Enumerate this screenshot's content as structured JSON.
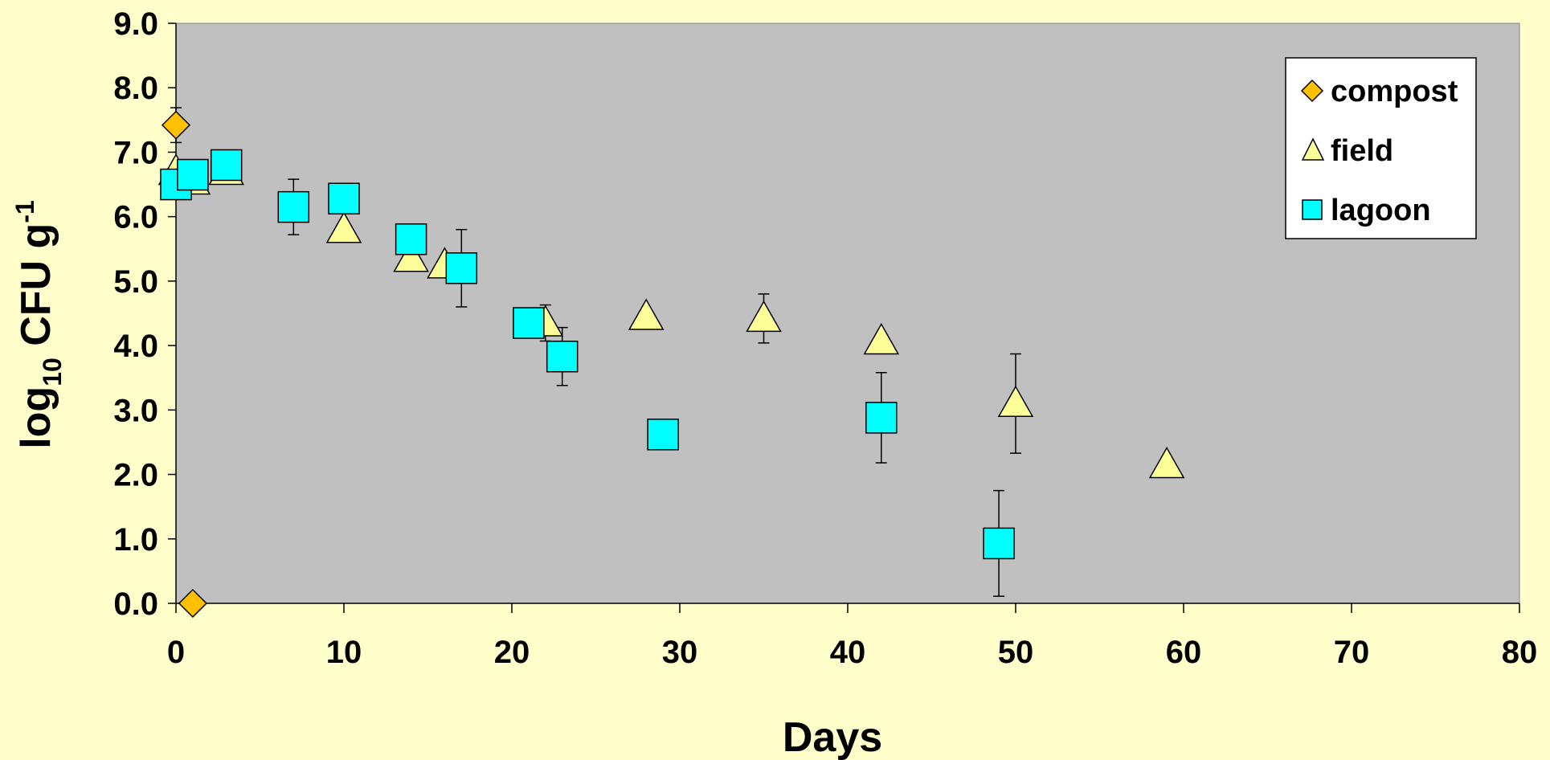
{
  "chart_data": {
    "type": "scatter",
    "title": "",
    "xlabel": "Days",
    "ylabel": {
      "base": "log",
      "sub": "10",
      "main": " CFU g",
      "sup": "-1"
    },
    "xlim": [
      0,
      80
    ],
    "ylim": [
      0,
      9
    ],
    "x_ticks": [
      0,
      10,
      20,
      30,
      40,
      50,
      60,
      70,
      80
    ],
    "y_ticks": [
      0,
      1,
      2,
      3,
      4,
      5,
      6,
      7,
      8,
      9
    ],
    "x_tick_labels": [
      "0",
      "10",
      "20",
      "30",
      "40",
      "50",
      "60",
      "70",
      "80"
    ],
    "y_tick_labels": [
      "0.0",
      "1.0",
      "2.0",
      "3.0",
      "4.0",
      "5.0",
      "6.0",
      "7.0",
      "8.0",
      "9.0"
    ],
    "grid": false,
    "plot_background": "#c0c0c0",
    "page_background": "#ffffcc",
    "legend_position": "top-right",
    "series": [
      {
        "name": "compost",
        "marker": "diamond",
        "color": "#ffc000",
        "points": [
          {
            "x": 0,
            "y": 7.42,
            "err": 0.27
          },
          {
            "x": 1,
            "y": 0.0
          }
        ]
      },
      {
        "name": "field",
        "marker": "triangle",
        "color": "#ffff99",
        "points": [
          {
            "x": 0,
            "y": 6.7
          },
          {
            "x": 1,
            "y": 6.55
          },
          {
            "x": 3,
            "y": 6.7
          },
          {
            "x": 10,
            "y": 5.8
          },
          {
            "x": 14,
            "y": 5.35
          },
          {
            "x": 16,
            "y": 5.25
          },
          {
            "x": 22,
            "y": 4.35,
            "err": 0.28
          },
          {
            "x": 28,
            "y": 4.45
          },
          {
            "x": 35,
            "y": 4.42,
            "err": 0.38
          },
          {
            "x": 42,
            "y": 4.07
          },
          {
            "x": 50,
            "y": 3.1,
            "err": 0.77
          },
          {
            "x": 59,
            "y": 2.15
          }
        ]
      },
      {
        "name": "lagoon",
        "marker": "square",
        "color": "#00ffff",
        "points": [
          {
            "x": 0,
            "y": 6.5
          },
          {
            "x": 1,
            "y": 6.65
          },
          {
            "x": 3,
            "y": 6.8
          },
          {
            "x": 7,
            "y": 6.15,
            "err": 0.43
          },
          {
            "x": 10,
            "y": 6.28
          },
          {
            "x": 14,
            "y": 5.65
          },
          {
            "x": 17,
            "y": 5.2,
            "err": 0.6
          },
          {
            "x": 21,
            "y": 4.35
          },
          {
            "x": 23,
            "y": 3.83,
            "err": 0.45
          },
          {
            "x": 29,
            "y": 2.62
          },
          {
            "x": 42,
            "y": 2.88,
            "err": 0.7
          },
          {
            "x": 49,
            "y": 0.93,
            "err": 0.82
          }
        ]
      }
    ]
  }
}
